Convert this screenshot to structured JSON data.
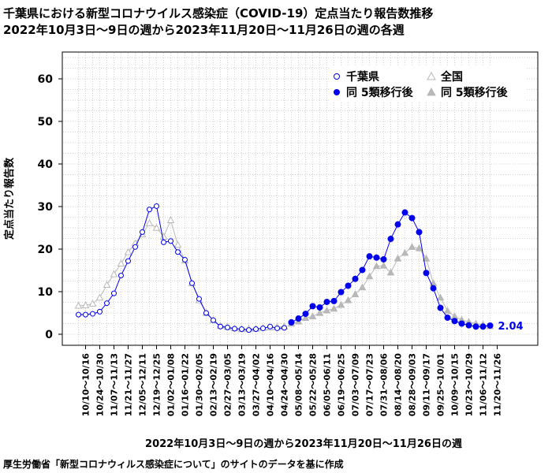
{
  "header": {
    "title_line1": "千葉県における新型コロナウイルス感染症（COVID-19）定点当たり報告数推移",
    "title_line2": "2022年10月3日〜9日の週から2023年11月20日〜11月26日の週の各週"
  },
  "footer": {
    "source": "厚生労働省「新型コロナウィルス感染症について」のサイトのデータを基に作成"
  },
  "colors": {
    "chiba": "#0000ee",
    "national": "#b8b8b8",
    "grid": "#d0d0d0"
  },
  "chart_data": {
    "type": "line",
    "title": "",
    "xlabel": "2022年10月3日〜9日の週から2023年11月20日〜11月26日の週",
    "ylabel": "定点当たり報告数",
    "ylim": [
      0,
      65
    ],
    "yticks": [
      0,
      10,
      20,
      30,
      40,
      50,
      60
    ],
    "grid": true,
    "legend_position": "top-right",
    "x_tick_labels": [
      "10/10〜10/16",
      "10/24〜10/30",
      "11/07〜11/13",
      "11/21〜11/27",
      "12/05〜12/11",
      "12/19〜12/25",
      "01/02〜01/08",
      "01/16〜01/22",
      "01/30〜02/05",
      "02/13〜02/19",
      "02/27〜03/05",
      "03/13〜03/19",
      "03/27〜04/02",
      "04/10〜04/16",
      "04/24〜04/30",
      "05/08〜05/14",
      "05/22〜05/28",
      "06/05〜06/11",
      "06/19〜06/25",
      "07/03〜07/09",
      "07/17〜07/23",
      "07/31〜08/06",
      "08/14〜08/20",
      "08/28〜09/03",
      "09/11〜09/17",
      "09/25〜10/01",
      "10/09〜10/15",
      "10/23〜10/29",
      "11/06〜11/12",
      "11/20〜11/26"
    ],
    "series": [
      {
        "name": "千葉県",
        "marker": "open-circle",
        "x_start": 0,
        "values": [
          4.6,
          4.6,
          4.8,
          5.3,
          7.3,
          9.6,
          13.8,
          17.2,
          20.5,
          24.0,
          29.3,
          30.1,
          21.6,
          21.9,
          19.3,
          17.5,
          12.0,
          8.3,
          5.0,
          3.3,
          1.8,
          1.6,
          1.3,
          1.2,
          1.0,
          1.2,
          1.4,
          1.8,
          1.4,
          1.5
        ]
      },
      {
        "name": "同 5類移行後",
        "marker": "filled-circle",
        "x_start": 30,
        "values": [
          2.8,
          3.7,
          4.8,
          6.6,
          6.3,
          7.6,
          7.8,
          9.9,
          11.4,
          13.0,
          15.1,
          18.3,
          18.0,
          17.6,
          22.4,
          25.8,
          28.6,
          27.3,
          24.0,
          14.4,
          10.8,
          6.2,
          3.9,
          3.1,
          2.5,
          2.1,
          1.8,
          1.8,
          2.04
        ]
      },
      {
        "name": "全国",
        "marker": "open-triangle",
        "x_start": 0,
        "values": [
          6.7,
          6.8,
          7.2,
          8.6,
          11.6,
          14.1,
          16.6,
          19.3,
          21.4,
          23.5,
          26.1,
          25.0,
          22.9,
          26.8,
          21.0,
          17.3,
          12.0,
          8.0,
          5.0,
          3.3,
          2.0,
          1.7,
          1.4,
          1.2,
          1.3,
          1.3,
          1.5,
          1.6,
          1.7,
          1.8
        ]
      },
      {
        "name": "同 5類移行後",
        "marker": "filled-triangle",
        "x_start": 30,
        "values": [
          2.5,
          3.0,
          3.8,
          4.2,
          5.0,
          5.6,
          6.0,
          6.9,
          8.0,
          9.4,
          11.0,
          13.6,
          16.0,
          16.1,
          14.5,
          17.8,
          19.1,
          20.5,
          20.2,
          17.8,
          12.0,
          8.6,
          5.5,
          4.2,
          3.4,
          2.9,
          2.5,
          2.3,
          1.9
        ]
      }
    ],
    "last_value_label": "2.04"
  }
}
